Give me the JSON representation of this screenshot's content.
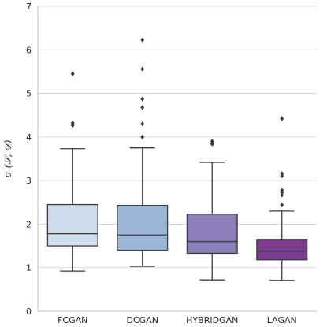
{
  "chart_data": {
    "type": "box",
    "ylabel": "σ (𝒮, 𝒟)",
    "ylim": [
      0,
      7
    ],
    "yticks": [
      0,
      1,
      2,
      3,
      4,
      5,
      6,
      7
    ],
    "grid": true,
    "categories": [
      "FCGAN",
      "DCGAN",
      "HYBRIDGAN",
      "LAGAN"
    ],
    "boxes": [
      {
        "name": "FCGAN",
        "whisker_low": 0.92,
        "q1": 1.5,
        "median": 1.78,
        "q3": 2.45,
        "whisker_high": 3.73,
        "outliers": [
          4.27,
          4.32,
          5.45
        ],
        "color": "#cfdcec"
      },
      {
        "name": "DCGAN",
        "whisker_low": 1.03,
        "q1": 1.4,
        "median": 1.75,
        "q3": 2.43,
        "whisker_high": 3.75,
        "outliers": [
          4.0,
          4.3,
          4.68,
          4.87,
          5.56,
          6.23
        ],
        "color": "#9db5d7"
      },
      {
        "name": "HYBRIDGAN",
        "whisker_low": 0.72,
        "q1": 1.33,
        "median": 1.6,
        "q3": 2.23,
        "whisker_high": 3.42,
        "outliers": [
          3.84,
          3.9
        ],
        "color": "#8d7fb9"
      },
      {
        "name": "LAGAN",
        "whisker_low": 0.71,
        "q1": 1.18,
        "median": 1.38,
        "q3": 1.65,
        "whisker_high": 2.3,
        "outliers": [
          2.44,
          2.67,
          2.73,
          2.78,
          3.11,
          3.16,
          4.42
        ],
        "color": "#7c3c8f"
      }
    ]
  }
}
